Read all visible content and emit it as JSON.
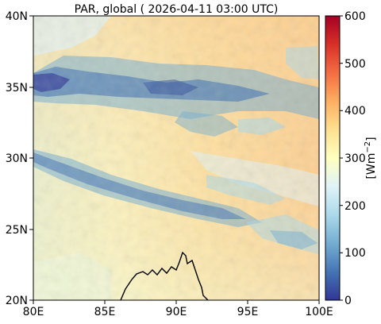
{
  "title": "PAR, global ( 2026-04-11 03:00 UTC)",
  "map": {
    "lon_range": [
      80,
      100
    ],
    "lat_range": [
      20,
      40
    ],
    "x_ticks": [
      "80E",
      "85E",
      "90E",
      "95E",
      "100E"
    ],
    "y_ticks": [
      "20N",
      "25N",
      "30N",
      "35N",
      "40N"
    ]
  },
  "colorbar": {
    "label": "[Wm^-2]",
    "label_base": "[Wm",
    "label_exp": "−2",
    "label_end": "]",
    "range": [
      0,
      600
    ],
    "ticks": [
      "0",
      "100",
      "200",
      "300",
      "400",
      "500",
      "600"
    ],
    "colormap": "RdYlBu_r",
    "colors": {
      "low": "#313695",
      "mid_low": "#abd9e9",
      "mid": "#ffffbf",
      "mid_high": "#fdae61",
      "high": "#a50026"
    }
  }
}
